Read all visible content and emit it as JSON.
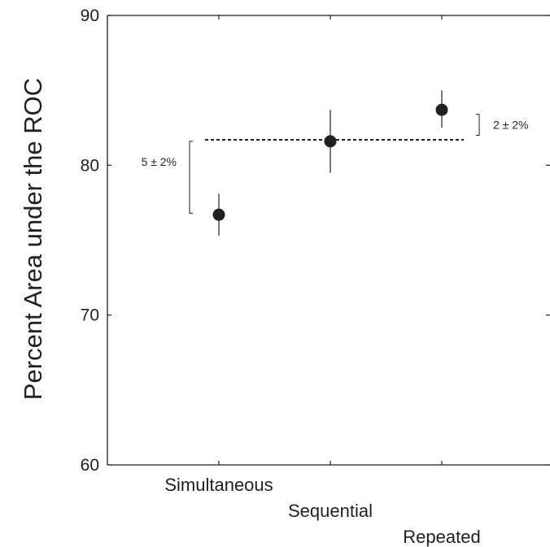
{
  "chart_data": {
    "type": "scatter",
    "title": "",
    "xlabel": "",
    "ylabel": "Percent Area under the ROC",
    "ylim": [
      60,
      90
    ],
    "yticks": [
      60,
      70,
      80,
      90
    ],
    "grid": false,
    "categories": [
      "Simultaneous",
      "Sequential",
      "Repeated"
    ],
    "points": [
      {
        "category": "Simultaneous",
        "value": 76.7,
        "err_low": 75.3,
        "err_high": 78.1
      },
      {
        "category": "Sequential",
        "value": 81.6,
        "err_low": 79.5,
        "err_high": 83.7
      },
      {
        "category": "Repeated",
        "value": 83.7,
        "err_low": 82.5,
        "err_high": 85.0
      }
    ],
    "reference_line": {
      "value": 81.7,
      "style": "dashed"
    },
    "annotations": [
      {
        "text": "5 ± 2%",
        "from": 76.8,
        "to": 81.6
      },
      {
        "text": "2 ± 2%",
        "from": 82.0,
        "to": 83.4
      }
    ]
  }
}
